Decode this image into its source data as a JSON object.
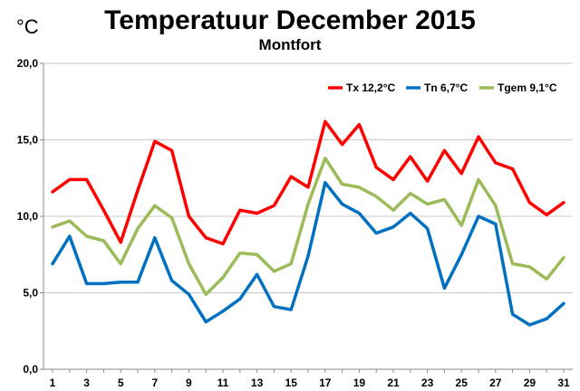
{
  "chart_data": {
    "type": "line",
    "title": "Temperatuur December 2015",
    "subtitle": "Montfort",
    "ylabel": "°C",
    "xlabel": "",
    "ylim": [
      0,
      20
    ],
    "yticks": [
      "0,0",
      "5,0",
      "10,0",
      "15,0",
      "20,0"
    ],
    "x": [
      1,
      2,
      3,
      4,
      5,
      6,
      7,
      8,
      9,
      10,
      11,
      12,
      13,
      14,
      15,
      16,
      17,
      18,
      19,
      20,
      21,
      22,
      23,
      24,
      25,
      26,
      27,
      28,
      29,
      30,
      31
    ],
    "xtick_labels": [
      "1",
      "3",
      "5",
      "7",
      "9",
      "11",
      "13",
      "15",
      "17",
      "19",
      "21",
      "23",
      "25",
      "27",
      "29",
      "31"
    ],
    "grid": true,
    "legend_position": "top-right",
    "series": [
      {
        "name": "Tx 12,2°C",
        "color": "#ff0000",
        "values": [
          11.6,
          12.4,
          12.4,
          10.4,
          8.3,
          11.7,
          14.9,
          14.3,
          10.0,
          8.6,
          8.2,
          10.4,
          10.2,
          10.7,
          12.6,
          11.9,
          16.2,
          14.7,
          16.0,
          13.2,
          12.4,
          13.9,
          12.3,
          14.3,
          12.8,
          15.2,
          13.5,
          13.1,
          10.9,
          10.1,
          10.9
        ]
      },
      {
        "name": "Tn 6,7°C",
        "color": "#0070c0",
        "values": [
          6.9,
          8.7,
          5.6,
          5.6,
          5.7,
          5.7,
          8.6,
          5.8,
          4.9,
          3.1,
          3.8,
          4.6,
          6.2,
          4.1,
          3.9,
          7.4,
          12.2,
          10.8,
          10.2,
          8.9,
          9.3,
          10.2,
          9.2,
          5.3,
          7.5,
          10.0,
          9.5,
          3.6,
          2.9,
          3.3,
          4.3
        ]
      },
      {
        "name": "Tgem 9,1°C",
        "color": "#9bbb59",
        "values": [
          9.3,
          9.7,
          8.7,
          8.4,
          6.9,
          9.2,
          10.7,
          9.9,
          6.9,
          4.9,
          6.0,
          7.6,
          7.5,
          6.4,
          6.9,
          10.8,
          13.8,
          12.1,
          11.9,
          11.3,
          10.4,
          11.5,
          10.8,
          11.1,
          9.4,
          12.4,
          10.7,
          6.9,
          6.7,
          5.9,
          7.3
        ]
      }
    ]
  }
}
